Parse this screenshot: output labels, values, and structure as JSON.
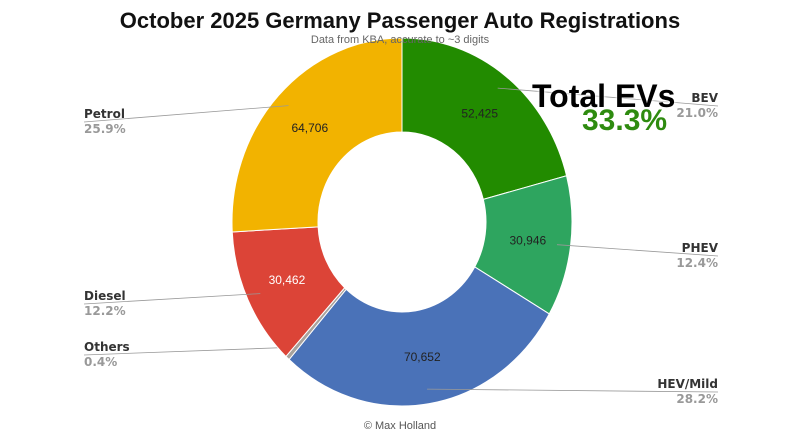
{
  "chart_data": {
    "type": "pie",
    "donut": true,
    "title": "October 2025 Germany Passenger Auto Registrations",
    "subtitle": "Data from KBA, accurate to ~3 digits",
    "credit": "© Max Holland",
    "annotation": {
      "title": "Total EVs",
      "value": "33.3%"
    },
    "slices": [
      {
        "name": "BEV",
        "value": 52425,
        "value_label": "52,425",
        "percent": "21.0%",
        "color": "#228b00"
      },
      {
        "name": "PHEV",
        "value": 30946,
        "value_label": "30,946",
        "percent": "12.4%",
        "color": "#2ea55f"
      },
      {
        "name": "HEV/Mild",
        "value": 70652,
        "value_label": "70,652",
        "percent": "28.2%",
        "color": "#4a72b8"
      },
      {
        "name": "Others",
        "value": 1000,
        "value_label": "",
        "percent": "0.4%",
        "color": "#a8a29c"
      },
      {
        "name": "Diesel",
        "value": 30462,
        "value_label": "30,462",
        "percent": "12.2%",
        "color": "#dc4437"
      },
      {
        "name": "Petrol",
        "value": 64706,
        "value_label": "64,706",
        "percent": "25.9%",
        "color": "#f2b300"
      }
    ]
  }
}
